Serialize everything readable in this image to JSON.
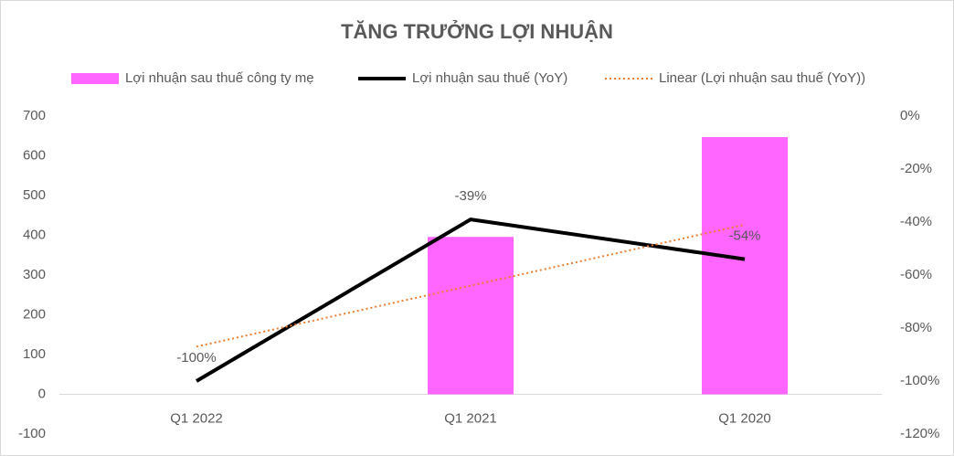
{
  "chart_data": {
    "type": "bar-line",
    "title": "TĂNG TRƯỞNG LỢI NHUẬN",
    "categories": [
      "Q1 2022",
      "Q1 2021",
      "Q1 2020"
    ],
    "series": [
      {
        "name": "Lợi nhuận sau thuế công ty mẹ",
        "type": "bar",
        "color": "#ff66ff",
        "values": [
          null,
          396,
          647
        ]
      },
      {
        "name": "Lợi nhuận sau thuế (YoY)",
        "type": "line",
        "axis": "y2",
        "color": "#000000",
        "values": [
          -100,
          -39,
          -54
        ],
        "value_labels": [
          "-100%",
          "-39%",
          "-54%"
        ]
      },
      {
        "name": "Linear (Lợi nhuận sau thuế (YoY))",
        "type": "trend",
        "axis": "y2",
        "color": "#ed7d31",
        "values": [
          -87,
          -64,
          -41
        ]
      }
    ],
    "ylim": [
      -100,
      700
    ],
    "yticks": [
      -100,
      0,
      100,
      200,
      300,
      400,
      500,
      600,
      700
    ],
    "y2lim": [
      -120,
      0
    ],
    "y2ticks": [
      {
        "value": -120,
        "label": "-120%"
      },
      {
        "value": -100,
        "label": "-100%"
      },
      {
        "value": -80,
        "label": "-80%"
      },
      {
        "value": -60,
        "label": "-60%"
      },
      {
        "value": -40,
        "label": "-40%"
      },
      {
        "value": -20,
        "label": "-20%"
      },
      {
        "value": 0,
        "label": "0%"
      }
    ],
    "legend": "top"
  }
}
